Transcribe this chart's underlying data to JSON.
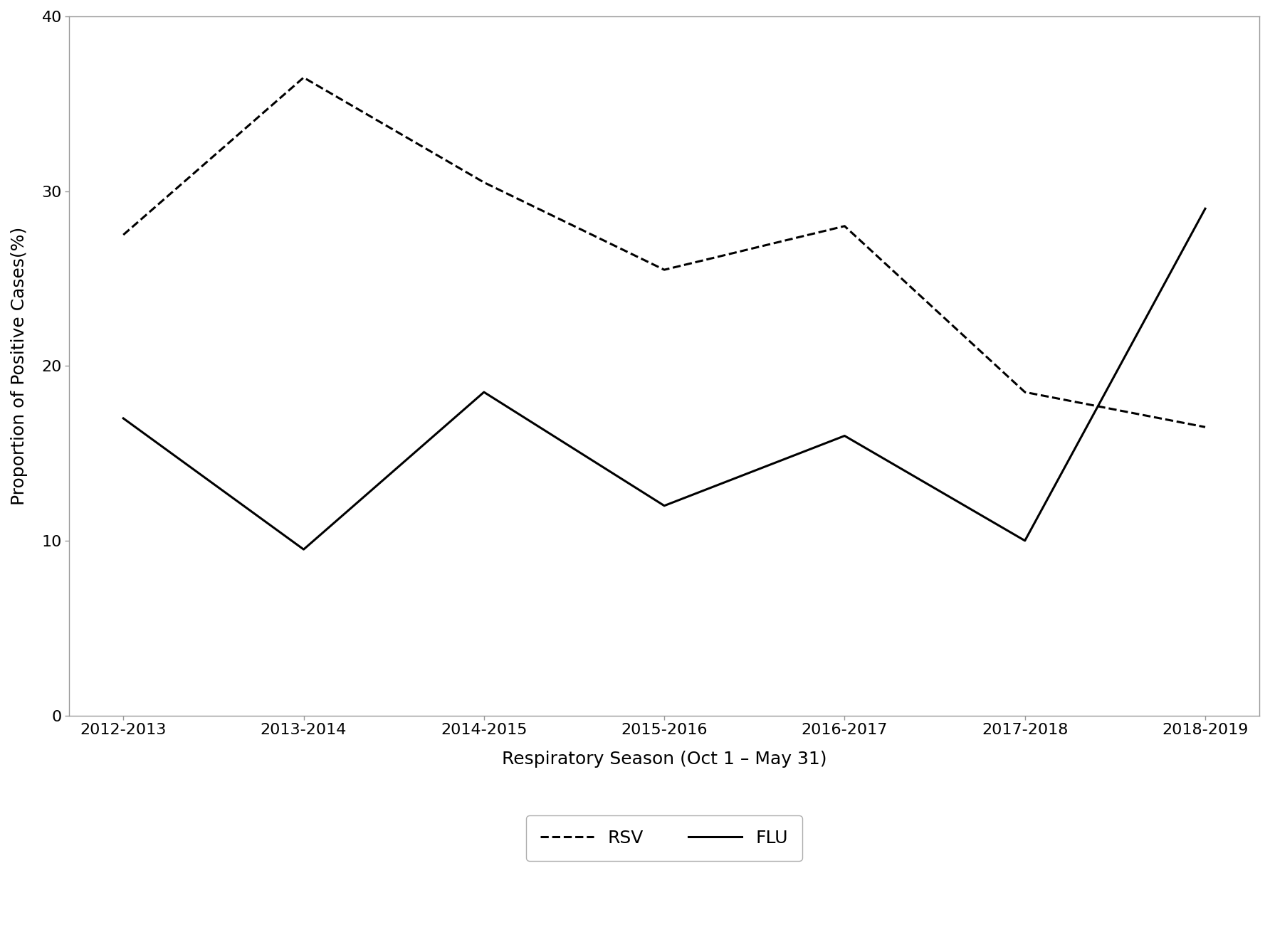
{
  "seasons": [
    "2012-2013",
    "2013-2014",
    "2014-2015",
    "2015-2016",
    "2016-2017",
    "2017-2018",
    "2018-2019"
  ],
  "rsv_values": [
    27.5,
    36.5,
    30.5,
    25.5,
    28.0,
    18.5,
    16.5
  ],
  "flu_values": [
    17.0,
    9.5,
    18.5,
    12.0,
    16.0,
    10.0,
    29.0
  ],
  "ylabel": "Proportion of Positive Cases(%)",
  "xlabel": "Respiratory Season (Oct 1 – May 31)",
  "ylim": [
    0,
    40
  ],
  "yticks": [
    0,
    10,
    20,
    30,
    40
  ],
  "rsv_label": "RSV",
  "flu_label": "FLU",
  "line_color": "#000000",
  "bg_color": "#ffffff",
  "plot_bg_color": "#ffffff",
  "rsv_linestyle": "--",
  "flu_linestyle": "-",
  "linewidth": 2.2,
  "fontsize_axis_label": 18,
  "fontsize_tick": 16,
  "fontsize_legend": 18,
  "spine_color": "#999999",
  "spine_linewidth": 1.0
}
